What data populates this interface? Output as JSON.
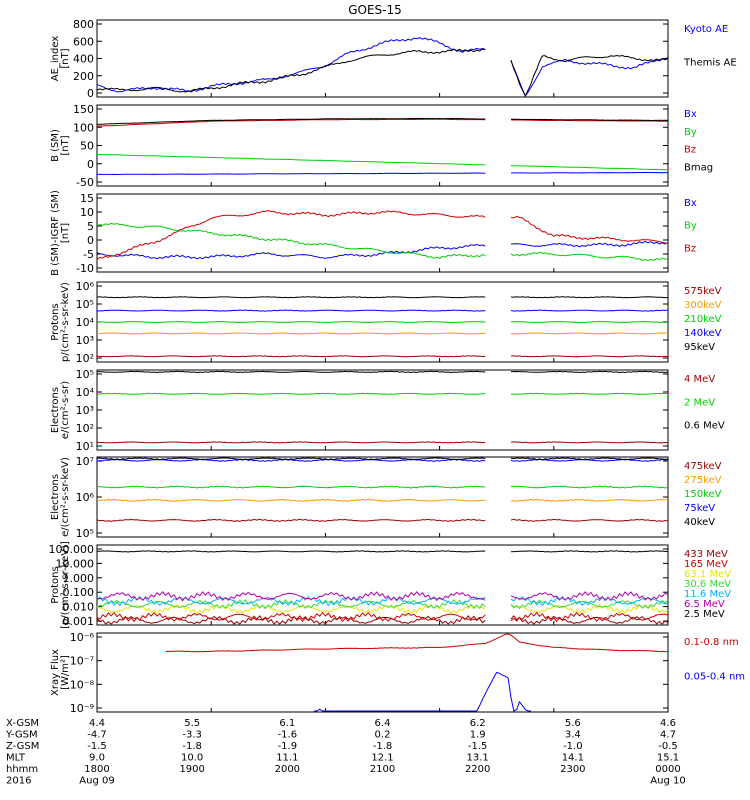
{
  "title": "GOES-15",
  "colors": {
    "black": "#000000",
    "blue": "#0000ff",
    "green": "#00d000",
    "red": "#cc0000",
    "darkred": "#990000",
    "orange": "#ff9900",
    "cyan": "#00b0ff",
    "yellow": "#e8e800",
    "purple": "#b000b0",
    "limegreen": "#33dd33"
  },
  "chart_data": [
    {
      "type": "line",
      "panel": "ae",
      "ylabel": "AE_index\n[nT]",
      "yticks": [
        "800",
        "600",
        "400",
        "200",
        "0"
      ],
      "ylim": [
        0,
        800
      ],
      "series": [
        {
          "name": "Kyoto AE",
          "color": "blue",
          "x": [
            0,
            0.2,
            0.5,
            0.8,
            1.0,
            1.2,
            1.5,
            1.8,
            2.0,
            2.2,
            2.5,
            2.8,
            3.0,
            3.2,
            3.4,
            3.6,
            3.75,
            3.9,
            4.1,
            4.3,
            4.5,
            4.7,
            5.0
          ],
          "y": [
            120,
            60,
            100,
            60,
            110,
            140,
            180,
            260,
            330,
            450,
            560,
            620,
            560,
            470,
            500,
            440,
            0,
            320,
            380,
            350,
            330,
            300,
            420
          ]
        },
        {
          "name": "Themis AE",
          "color": "black",
          "x": [
            0,
            0.2,
            0.5,
            0.8,
            1.0,
            1.2,
            1.5,
            1.8,
            2.0,
            2.2,
            2.5,
            2.8,
            3.0,
            3.2,
            3.4,
            3.6,
            3.75,
            3.9,
            4.1,
            4.3,
            4.5,
            4.7,
            5.0
          ],
          "y": [
            90,
            70,
            90,
            60,
            90,
            130,
            170,
            240,
            310,
            380,
            440,
            470,
            470,
            480,
            500,
            460,
            0,
            420,
            380,
            410,
            430,
            400,
            380
          ]
        }
      ]
    },
    {
      "type": "line",
      "panel": "b",
      "ylabel": "B (SM)\n[nT]",
      "yticks": [
        "150",
        "100",
        "50",
        "0",
        "-50"
      ],
      "ylim": [
        -60,
        150
      ],
      "series": [
        {
          "name": "Bx",
          "color": "blue",
          "x": [
            0,
            5
          ],
          "y": [
            -30,
            -25
          ]
        },
        {
          "name": "By",
          "color": "green",
          "x": [
            0,
            5
          ],
          "y": [
            22,
            -18
          ]
        },
        {
          "name": "Bz",
          "color": "red",
          "x": [
            0,
            1,
            2,
            3,
            4,
            5
          ],
          "y": [
            95,
            108,
            112,
            113,
            110,
            108
          ]
        },
        {
          "name": "Bmag",
          "color": "black",
          "x": [
            0,
            1,
            2,
            3,
            4,
            5
          ],
          "y": [
            100,
            110,
            114,
            115,
            112,
            110
          ]
        }
      ]
    },
    {
      "type": "line",
      "panel": "bigrf",
      "ylabel": "B (SM)-IGRF (SM)\n[nT]",
      "yticks": [
        "15",
        "10",
        "5",
        "0",
        "-5",
        "-10"
      ],
      "ylim": [
        -10,
        16
      ],
      "series": [
        {
          "name": "Bx",
          "color": "blue",
          "x": [
            0,
            0.5,
            1,
            1.5,
            2,
            2.5,
            3,
            3.5,
            3.7,
            4,
            4.5,
            5
          ],
          "y": [
            -4,
            -5,
            -5,
            -4,
            -5,
            -4,
            -2,
            -1,
            -1,
            -1,
            -1,
            0
          ]
        },
        {
          "name": "By",
          "color": "green",
          "x": [
            0,
            0.5,
            1,
            1.5,
            2,
            2.5,
            3,
            3.5,
            3.7,
            4,
            4.5,
            5
          ],
          "y": [
            6,
            5,
            3,
            1,
            -1,
            -3,
            -5,
            -4,
            -4,
            -4,
            -5,
            -6
          ]
        },
        {
          "name": "Bz",
          "color": "red",
          "x": [
            0,
            0.5,
            1,
            1.5,
            2,
            2.5,
            3,
            3.5,
            3.7,
            4,
            4.5,
            5
          ],
          "y": [
            -6,
            0,
            8,
            10,
            9,
            10,
            9,
            8,
            8,
            2,
            1,
            0
          ]
        }
      ]
    },
    {
      "type": "line",
      "panel": "protons",
      "ylabel": "Protons\np/(cm²-s-sr-keV)",
      "yticks": [
        "10⁶",
        "10⁵",
        "10⁴",
        "10³",
        "10²"
      ],
      "log": true,
      "ylim": [
        1.8,
        6
      ],
      "series": [
        {
          "name": "575keV",
          "color": "darkred",
          "logy": 2.1
        },
        {
          "name": "300keV",
          "color": "orange",
          "logy": 3.3
        },
        {
          "name": "210keV",
          "color": "green",
          "logy": 3.9
        },
        {
          "name": "140keV",
          "color": "blue",
          "logy": 4.5
        },
        {
          "name": "95keV",
          "color": "black",
          "logy": 5.2
        }
      ]
    },
    {
      "type": "line",
      "panel": "electrons1",
      "ylabel": "Electrons\ne/(cm²-s-sr)",
      "yticks": [
        "10⁵",
        "10⁴",
        "10³",
        "10²",
        "10¹"
      ],
      "log": true,
      "ylim": [
        0.8,
        5
      ],
      "series": [
        {
          "name": "4 MeV",
          "color": "darkred",
          "logy": 1.2
        },
        {
          "name": "2 MeV",
          "color": "green",
          "logy": 3.75
        },
        {
          "name": "0.6 MeV",
          "color": "black",
          "logy": 4.9
        }
      ]
    },
    {
      "type": "line",
      "panel": "electrons2",
      "ylabel": "Electrons\ne/(cm²-s-sr-keV)",
      "yticks": [
        "10⁷",
        "10⁶",
        "10⁵"
      ],
      "log": true,
      "ylim": [
        4.6,
        7
      ],
      "series": [
        {
          "name": "475keV",
          "color": "darkred",
          "logy": 5.1
        },
        {
          "name": "275keV",
          "color": "orange",
          "logy": 5.7
        },
        {
          "name": "150keV",
          "color": "green",
          "logy": 6.1
        },
        {
          "name": "75keV",
          "color": "blue",
          "logy": 6.9
        },
        {
          "name": "40keV",
          "color": "black",
          "logy": 6.95
        }
      ]
    },
    {
      "type": "line",
      "panel": "protons2",
      "ylabel": "Protons\n[p/(cm²-s-sr-keV)]",
      "yticks": [
        "100.000",
        "10.000",
        "1.000",
        "0.100",
        "0.010",
        "0.001"
      ],
      "log": true,
      "ylim": [
        -3,
        2
      ],
      "series": [
        {
          "name": "433 MeV",
          "color": "darkred",
          "logy": -2.7
        },
        {
          "name": "165 MeV",
          "color": "red",
          "logy": -2.5
        },
        {
          "name": "63.1 MeV",
          "color": "yellow",
          "logy": -2.0
        },
        {
          "name": "30.6 MeV",
          "color": "limegreen",
          "logy": -1.7
        },
        {
          "name": "11.6 MeV",
          "color": "cyan",
          "logy": -1.5
        },
        {
          "name": "6.5 MeV",
          "color": "purple",
          "logy": -1.2
        },
        {
          "name": "2.5 MeV",
          "color": "black",
          "logy": 1.6
        }
      ]
    },
    {
      "type": "line",
      "panel": "xray",
      "ylabel": "Xray Flux\n[W/m²]",
      "yticks": [
        "10⁻⁶",
        "10⁻⁷",
        "10⁻⁸",
        "10⁻⁹"
      ],
      "log": true,
      "ylim": [
        -9,
        -6
      ],
      "series": [
        {
          "name": "0.1-0.8 nm",
          "color": "red",
          "x": [
            0.6,
            1,
            2,
            3,
            3.4,
            3.6,
            3.7,
            4,
            4.5,
            5
          ],
          "y": [
            -6.7,
            -6.7,
            -6.6,
            -6.55,
            -6.4,
            -6.0,
            -6.35,
            -6.55,
            -6.65,
            -6.7
          ]
        },
        {
          "name": "0.05-0.4 nm",
          "color": "blue",
          "x": [
            1.9,
            1.95,
            2.0,
            3.3,
            3.4,
            3.5,
            3.6,
            3.65,
            3.7,
            3.8
          ],
          "y": [
            -9.2,
            -8.9,
            -9.2,
            -9.2,
            -8.3,
            -7.5,
            -7.7,
            -9.2,
            -8.6,
            -9.2
          ]
        }
      ]
    }
  ],
  "axis": {
    "rows": [
      {
        "label": "X-GSM",
        "values": [
          "4.4",
          "5.5",
          "6.1",
          "6.4",
          "6.2",
          "5.6",
          "4.6"
        ]
      },
      {
        "label": "Y-GSM",
        "values": [
          "-4.7",
          "-3.3",
          "-1.6",
          "0.2",
          "1.9",
          "3.4",
          "4.7"
        ]
      },
      {
        "label": "Z-GSM",
        "values": [
          "-1.5",
          "-1.8",
          "-1.9",
          "-1.8",
          "-1.5",
          "-1.0",
          "-0.5"
        ]
      },
      {
        "label": "MLT",
        "values": [
          "9.0",
          "10.0",
          "11.1",
          "12.1",
          "13.1",
          "14.1",
          "15.1"
        ]
      },
      {
        "label": "hhmm",
        "values": [
          "1800",
          "1900",
          "2000",
          "2100",
          "2200",
          "2300",
          "0000"
        ]
      },
      {
        "label": "2016",
        "values": [
          "Aug 09",
          "",
          "",
          "",
          "",
          "",
          "Aug 10"
        ]
      }
    ]
  }
}
